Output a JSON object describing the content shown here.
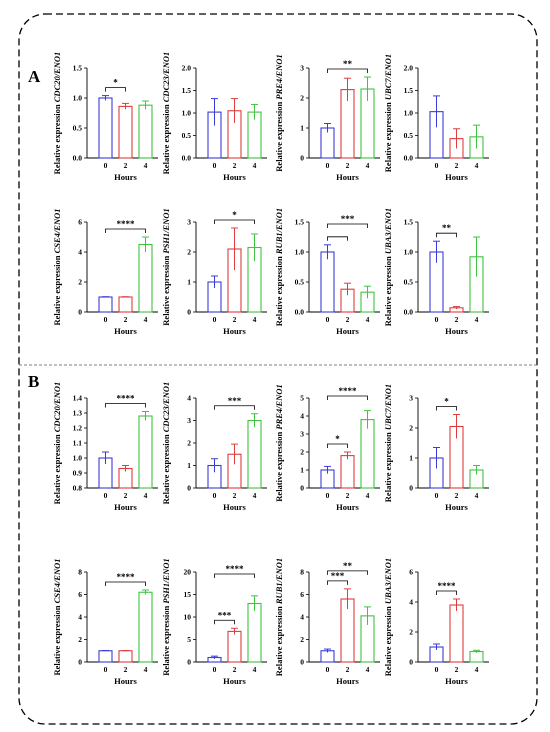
{
  "panels": [
    {
      "letter": "A"
    },
    {
      "letter": "B"
    }
  ],
  "colors": {
    "0": "#3b3bd8",
    "2": "#e03c3c",
    "4": "#3fc43f"
  },
  "chart_data": [
    {
      "type": "bar",
      "panel": "A",
      "categories": [
        "0",
        "2",
        "4"
      ],
      "values": [
        1.0,
        0.86,
        0.88
      ],
      "errors": [
        0.04,
        0.05,
        0.07
      ],
      "ylabel_prefix": "Relative expression ",
      "gene": "CDC20",
      "ylabel_suffix": "/ENO1",
      "xlabel": "Hours",
      "ylim": [
        0,
        1.5
      ],
      "yticks": [
        "0.0",
        "0.5",
        "1.0",
        "1.5"
      ],
      "sig": [
        {
          "from": 0,
          "to": 1,
          "label": "*"
        }
      ]
    },
    {
      "type": "bar",
      "panel": "A",
      "categories": [
        "0",
        "2",
        "4"
      ],
      "values": [
        1.02,
        1.05,
        1.02
      ],
      "errors": [
        0.3,
        0.27,
        0.17
      ],
      "ylabel_prefix": "Relative expression ",
      "gene": "CDC23",
      "ylabel_suffix": "/ENO1",
      "xlabel": "Hours",
      "ylim": [
        0,
        2.0
      ],
      "yticks": [
        "0.0",
        "0.5",
        "1.0",
        "1.5",
        "2.0"
      ],
      "sig": []
    },
    {
      "type": "bar",
      "panel": "A",
      "categories": [
        "0",
        "2",
        "4"
      ],
      "values": [
        1.0,
        2.28,
        2.3
      ],
      "errors": [
        0.15,
        0.38,
        0.4
      ],
      "ylabel_prefix": "Relative expression ",
      "gene": "PRE4",
      "ylabel_suffix": "/ENO1",
      "xlabel": "Hours",
      "ylim": [
        0,
        3
      ],
      "yticks": [
        "0",
        "1",
        "2",
        "3"
      ],
      "sig": [
        {
          "from": 0,
          "to": 2,
          "label": "**"
        }
      ]
    },
    {
      "type": "bar",
      "panel": "A",
      "categories": [
        "0",
        "2",
        "4"
      ],
      "values": [
        1.03,
        0.43,
        0.47
      ],
      "errors": [
        0.35,
        0.22,
        0.26
      ],
      "ylabel_prefix": "Relative expression ",
      "gene": "UBC7",
      "ylabel_suffix": "/ENO1",
      "xlabel": "Hours",
      "ylim": [
        0,
        2.0
      ],
      "yticks": [
        "0.0",
        "0.5",
        "1.0",
        "1.5",
        "2.0"
      ],
      "sig": []
    },
    {
      "type": "bar",
      "panel": "A",
      "categories": [
        "0",
        "2",
        "4"
      ],
      "values": [
        1.0,
        1.0,
        4.5
      ],
      "errors": [
        0.02,
        0.02,
        0.5
      ],
      "ylabel_prefix": "Relative expression ",
      "gene": "CSE4",
      "ylabel_suffix": "/ENO1",
      "xlabel": "Hours",
      "ylim": [
        0,
        6
      ],
      "yticks": [
        "0",
        "2",
        "4",
        "6"
      ],
      "sig": [
        {
          "from": 0,
          "to": 2,
          "label": "****"
        }
      ]
    },
    {
      "type": "bar",
      "panel": "A",
      "categories": [
        "0",
        "2",
        "4"
      ],
      "values": [
        1.0,
        2.1,
        2.15
      ],
      "errors": [
        0.2,
        0.7,
        0.45
      ],
      "ylabel_prefix": "Relative expression ",
      "gene": "PSH1",
      "ylabel_suffix": "/ENO1",
      "xlabel": "Hours",
      "ylim": [
        0,
        3
      ],
      "yticks": [
        "0",
        "1",
        "2",
        "3"
      ],
      "sig": [
        {
          "from": 0,
          "to": 2,
          "label": "*"
        }
      ]
    },
    {
      "type": "bar",
      "panel": "A",
      "categories": [
        "0",
        "2",
        "4"
      ],
      "values": [
        1.0,
        0.38,
        0.33
      ],
      "errors": [
        0.12,
        0.1,
        0.1
      ],
      "ylabel_prefix": "Relative expression ",
      "gene": "RUB1",
      "ylabel_suffix": "/ENO1",
      "xlabel": "Hours",
      "ylim": [
        0,
        1.5
      ],
      "yticks": [
        "0.0",
        "0.5",
        "1.0",
        "1.5"
      ],
      "sig": [
        {
          "from": 0,
          "to": 1,
          "label": ""
        },
        {
          "from": 0,
          "to": 2,
          "label": "***"
        }
      ]
    },
    {
      "type": "bar",
      "panel": "A",
      "categories": [
        "0",
        "2",
        "4"
      ],
      "values": [
        1.0,
        0.07,
        0.92
      ],
      "errors": [
        0.18,
        0.02,
        0.33
      ],
      "ylabel_prefix": "Relative expression ",
      "gene": "UBA3",
      "ylabel_suffix": "/ENO1",
      "xlabel": "Hours",
      "ylim": [
        0,
        1.5
      ],
      "yticks": [
        "0.0",
        "0.5",
        "1.0",
        "1.5"
      ],
      "sig": [
        {
          "from": 0,
          "to": 1,
          "label": "**"
        }
      ]
    },
    {
      "type": "bar",
      "panel": "B",
      "categories": [
        "0",
        "2",
        "4"
      ],
      "values": [
        1.0,
        0.93,
        1.28
      ],
      "errors": [
        0.04,
        0.02,
        0.03
      ],
      "ylabel_prefix": "Relative expression ",
      "gene": "CDC20",
      "ylabel_suffix": "/ENO1",
      "xlabel": "Hours",
      "ylim": [
        0.8,
        1.4
      ],
      "yticks": [
        "0.8",
        "0.9",
        "1.0",
        "1.1",
        "1.2",
        "1.3",
        "1.4"
      ],
      "sig": [
        {
          "from": 0,
          "to": 2,
          "label": "****"
        }
      ]
    },
    {
      "type": "bar",
      "panel": "B",
      "categories": [
        "0",
        "2",
        "4"
      ],
      "values": [
        1.0,
        1.5,
        3.0
      ],
      "errors": [
        0.3,
        0.45,
        0.3
      ],
      "ylabel_prefix": "Relative expression ",
      "gene": "CDC23",
      "ylabel_suffix": "/ENO1",
      "xlabel": "Hours",
      "ylim": [
        0,
        4
      ],
      "yticks": [
        "0",
        "1",
        "2",
        "3",
        "4"
      ],
      "sig": [
        {
          "from": 0,
          "to": 2,
          "label": "***"
        }
      ]
    },
    {
      "type": "bar",
      "panel": "B",
      "categories": [
        "0",
        "2",
        "4"
      ],
      "values": [
        1.0,
        1.8,
        3.8
      ],
      "errors": [
        0.2,
        0.2,
        0.5
      ],
      "ylabel_prefix": "Relative expression ",
      "gene": "PRE4",
      "ylabel_suffix": "/ENO1",
      "xlabel": "Hours",
      "ylim": [
        0,
        5
      ],
      "yticks": [
        "0",
        "1",
        "2",
        "3",
        "4",
        "5"
      ],
      "sig": [
        {
          "from": 0,
          "to": 1,
          "label": "*"
        },
        {
          "from": 0,
          "to": 2,
          "label": "****"
        }
      ]
    },
    {
      "type": "bar",
      "panel": "B",
      "categories": [
        "0",
        "2",
        "4"
      ],
      "values": [
        1.0,
        2.05,
        0.6
      ],
      "errors": [
        0.35,
        0.4,
        0.15
      ],
      "ylabel_prefix": "Relative expression ",
      "gene": "UBC7",
      "ylabel_suffix": "/ENO1",
      "xlabel": "Hours",
      "ylim": [
        0,
        3
      ],
      "yticks": [
        "0",
        "1",
        "2",
        "3"
      ],
      "sig": [
        {
          "from": 0,
          "to": 1,
          "label": "*"
        }
      ]
    },
    {
      "type": "bar",
      "panel": "B",
      "categories": [
        "0",
        "2",
        "4"
      ],
      "values": [
        1.0,
        1.0,
        6.2
      ],
      "errors": [
        0.02,
        0.02,
        0.2
      ],
      "ylabel_prefix": "Relative expression ",
      "gene": "CSE4",
      "ylabel_suffix": "/ENO1",
      "xlabel": "Hours",
      "ylim": [
        0,
        8
      ],
      "yticks": [
        "0",
        "2",
        "4",
        "6",
        "8"
      ],
      "sig": [
        {
          "from": 0,
          "to": 2,
          "label": "****"
        }
      ]
    },
    {
      "type": "bar",
      "panel": "B",
      "categories": [
        "0",
        "2",
        "4"
      ],
      "values": [
        1.0,
        6.8,
        13.0
      ],
      "errors": [
        0.3,
        0.7,
        1.7
      ],
      "ylabel_prefix": "Relative expression ",
      "gene": "PSH1",
      "ylabel_suffix": "/ENO1",
      "xlabel": "Hours",
      "ylim": [
        0,
        20
      ],
      "yticks": [
        "0",
        "5",
        "10",
        "15",
        "20"
      ],
      "sig": [
        {
          "from": 0,
          "to": 1,
          "label": "***"
        },
        {
          "from": 0,
          "to": 2,
          "label": "****"
        }
      ]
    },
    {
      "type": "bar",
      "panel": "B",
      "categories": [
        "0",
        "2",
        "4"
      ],
      "values": [
        1.0,
        5.6,
        4.1
      ],
      "errors": [
        0.15,
        0.9,
        0.8
      ],
      "ylabel_prefix": "Relative expression ",
      "gene": "RUB1",
      "ylabel_suffix": "/ENO1",
      "xlabel": "Hours",
      "ylim": [
        0,
        8
      ],
      "yticks": [
        "0",
        "2",
        "4",
        "6",
        "8"
      ],
      "sig": [
        {
          "from": 0,
          "to": 1,
          "label": "***"
        },
        {
          "from": 0,
          "to": 2,
          "label": "**"
        }
      ]
    },
    {
      "type": "bar",
      "panel": "B",
      "categories": [
        "0",
        "2",
        "4"
      ],
      "values": [
        1.0,
        3.8,
        0.7
      ],
      "errors": [
        0.2,
        0.4,
        0.08
      ],
      "ylabel_prefix": "Relative expression ",
      "gene": "UBA3",
      "ylabel_suffix": "/ENO1",
      "xlabel": "Hours",
      "ylim": [
        0,
        6
      ],
      "yticks": [
        "0",
        "2",
        "4",
        "6"
      ],
      "sig": [
        {
          "from": 0,
          "to": 1,
          "label": "****"
        }
      ]
    }
  ]
}
